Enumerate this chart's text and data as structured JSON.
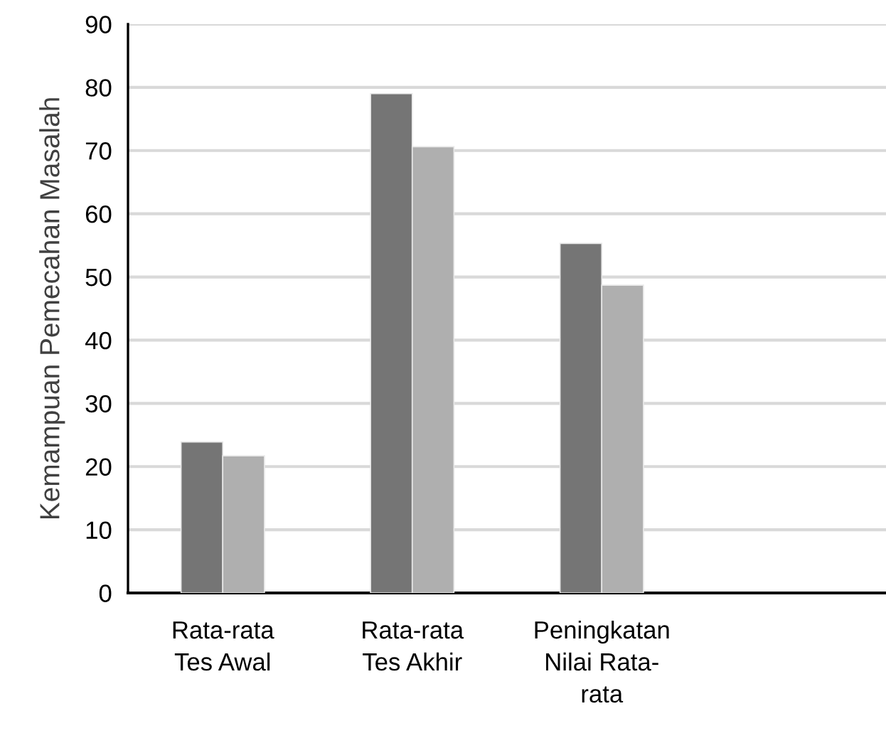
{
  "chart_data": {
    "type": "bar",
    "ylabel": "Kemampuan Pemecahan Masalah",
    "categories": [
      "Rata-rata\nTes Awal",
      "Rata-rata\nTes Akhir",
      "Peningkatan\nNilai Rata-\nrata",
      null
    ],
    "series": [
      {
        "color": "#757575",
        "values": [
          23.9,
          79.0,
          55.3,
          null
        ]
      },
      {
        "color": "#afafaf",
        "values": [
          21.7,
          70.6,
          48.7,
          null
        ]
      }
    ],
    "ylim": [
      0,
      90
    ],
    "yticks": [
      0,
      10,
      20,
      30,
      40,
      50,
      60,
      70,
      80,
      90
    ],
    "grid": "y",
    "legend": false
  }
}
